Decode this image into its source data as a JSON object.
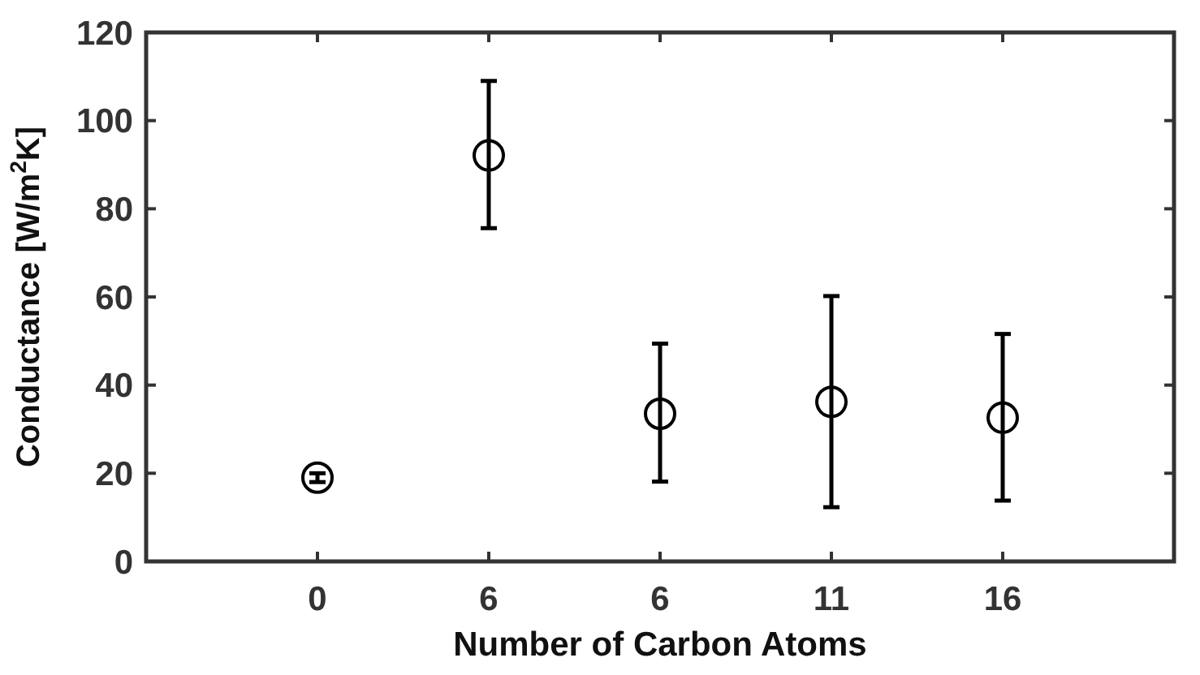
{
  "chart_data": {
    "type": "scatter",
    "xlabel": "Number of Carbon Atoms",
    "ylabel": "Conductance [W/m$^{2}$K]",
    "categories": [
      "0",
      "6",
      "6",
      "11",
      "16"
    ],
    "series": [
      {
        "color": "#000000",
        "values": [
          19,
          92.1,
          33.5,
          36.2,
          32.6
        ],
        "errors": [
          1,
          [
            75.6,
            109
          ],
          [
            18.1,
            49.4
          ],
          [
            12.3,
            60.2
          ],
          [
            13.8,
            51.6
          ]
        ]
      }
    ],
    "ylim": [
      0,
      120
    ],
    "yticks": [
      0,
      20,
      40,
      60,
      80,
      100,
      120
    ],
    "marker": "circle",
    "grid": false
  }
}
